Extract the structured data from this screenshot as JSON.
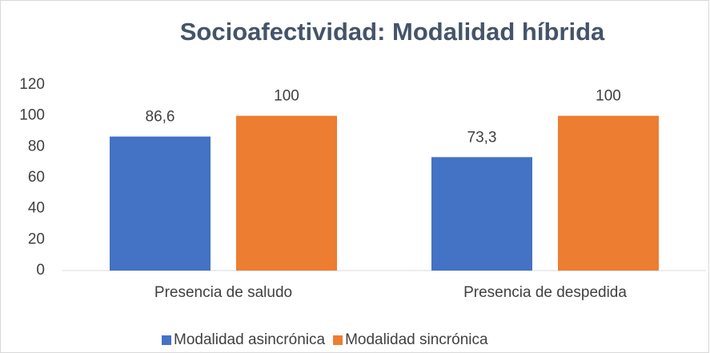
{
  "chart_data": {
    "type": "bar",
    "title": "Socioafectividad: Modalidad híbrida",
    "categories": [
      "Presencia de saludo",
      "Presencia de despedida"
    ],
    "series": [
      {
        "name": "Modalidad asincrónica",
        "color": "#4472c4",
        "values": [
          86.6,
          73.3
        ],
        "value_labels": [
          "86,6",
          "73,3"
        ]
      },
      {
        "name": "Modalidad sincrónica",
        "color": "#ed7d31",
        "values": [
          100,
          100
        ],
        "value_labels": [
          "100",
          "100"
        ]
      }
    ],
    "ylim": [
      0,
      120
    ],
    "yticks": [
      0,
      20,
      40,
      60,
      80,
      100,
      120
    ],
    "grid": false,
    "legend": "bottom"
  }
}
